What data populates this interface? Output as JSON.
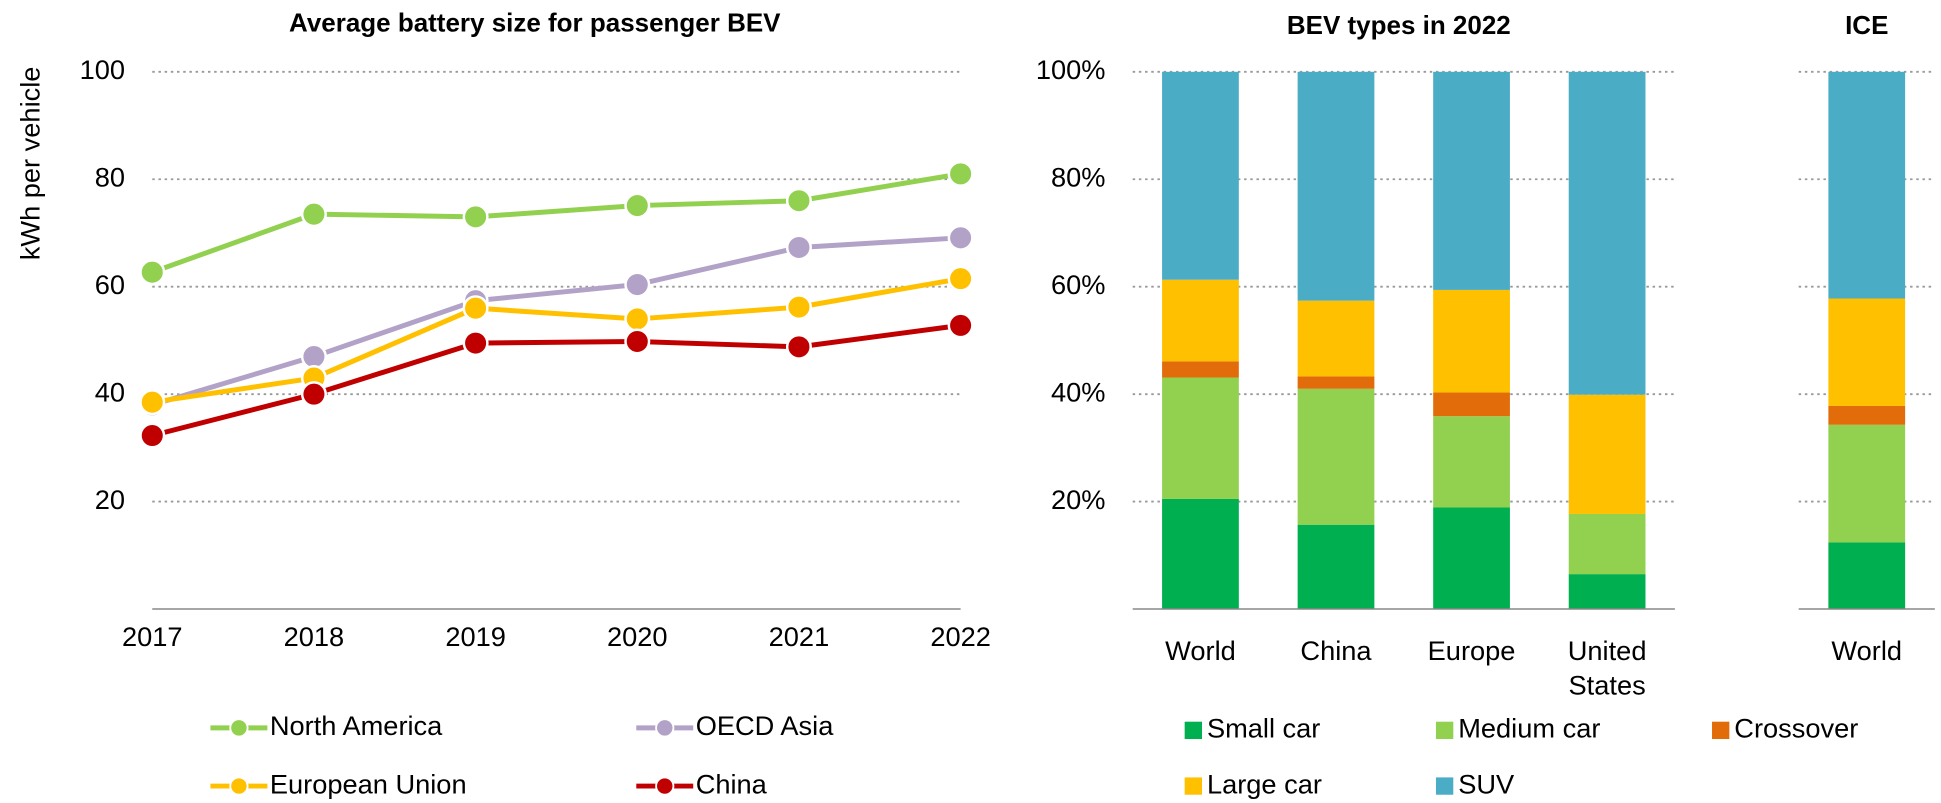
{
  "chart_data": [
    {
      "type": "line",
      "title": "Average battery size for passenger BEV",
      "ylabel": "kWh per vehicle",
      "x": [
        "2017",
        "2018",
        "2019",
        "2020",
        "2021",
        "2022"
      ],
      "ylim": [
        0,
        100
      ],
      "yticks": [
        20,
        40,
        60,
        80,
        100
      ],
      "grid": true,
      "series": [
        {
          "name": "North America",
          "color": "#92d050",
          "values": [
            62.7,
            73.5,
            73,
            75.1,
            76,
            81
          ]
        },
        {
          "name": "OECD Asia",
          "color": "#b3a2c7",
          "values": [
            38,
            47,
            57.4,
            60.4,
            67.3,
            69.1
          ]
        },
        {
          "name": "European Union",
          "color": "#ffc000",
          "values": [
            38.5,
            43,
            56,
            54,
            56.2,
            61.5
          ]
        },
        {
          "name": "China",
          "color": "#c00000",
          "values": [
            32.3,
            40,
            49.5,
            49.8,
            48.8,
            52.8
          ]
        }
      ]
    },
    {
      "type": "stacked_bar",
      "title": "BEV types in 2022",
      "categories": [
        "World",
        "China",
        "Europe",
        "United States"
      ],
      "ylim": [
        0,
        100
      ],
      "yticks": [
        {
          "value": 20,
          "label": "20%"
        },
        {
          "value": 40,
          "label": "40%"
        },
        {
          "value": 60,
          "label": "60%"
        },
        {
          "value": 80,
          "label": "80%"
        },
        {
          "value": 100,
          "label": "100%"
        }
      ],
      "grid": true,
      "series": [
        {
          "name": "Small car",
          "color": "#00b050",
          "values": [
            20.5,
            15.7,
            18.9,
            6.5
          ]
        },
        {
          "name": "Medium car",
          "color": "#92d050",
          "values": [
            22.6,
            25.3,
            17,
            11.2
          ]
        },
        {
          "name": "Crossover",
          "color": "#e36c0a",
          "values": [
            3,
            2.3,
            4.4,
            0
          ]
        },
        {
          "name": "Large car",
          "color": "#ffc000",
          "values": [
            15.2,
            14.1,
            19.1,
            22.2
          ]
        },
        {
          "name": "SUV",
          "color": "#4bacc6",
          "values": [
            38.7,
            42.6,
            40.6,
            60.1
          ]
        }
      ]
    },
    {
      "type": "stacked_bar",
      "title": "ICE",
      "categories": [
        "World"
      ],
      "ylim": [
        0,
        100
      ],
      "series": [
        {
          "color": "#00b050",
          "values": [
            12.4
          ]
        },
        {
          "color": "#92d050",
          "values": [
            21.9
          ]
        },
        {
          "color": "#e36c0a",
          "values": [
            3.5
          ]
        },
        {
          "color": "#ffc000",
          "values": [
            20
          ]
        },
        {
          "color": "#4bacc6",
          "values": [
            42.2
          ]
        }
      ]
    }
  ]
}
